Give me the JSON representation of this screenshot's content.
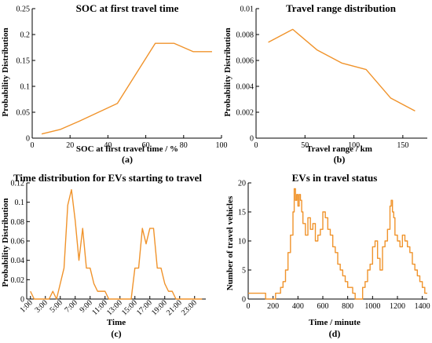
{
  "figure": {
    "colors": {
      "series": "#f0932b",
      "axis": "#000000"
    }
  },
  "chart_data": [
    {
      "type": "line",
      "title": "SOC at first travel time",
      "xlabel": "SOC at first travel time / %",
      "ylabel": "Probability Distribution",
      "tag": "(a)",
      "xlim": [
        0,
        100
      ],
      "ylim": [
        0,
        0.25
      ],
      "xticks": [
        0,
        20,
        40,
        60,
        80,
        100
      ],
      "yticks": [
        0,
        0.05,
        0.1,
        0.15,
        0.2,
        0.25
      ],
      "xtick_labels": [
        "0",
        "20",
        "40",
        "60",
        "80",
        "100"
      ],
      "ytick_labels": [
        "0",
        "0.05",
        "0.1",
        "0.15",
        "0.2",
        "0.25"
      ],
      "grid": false,
      "x": [
        5,
        15,
        25,
        35,
        45,
        55,
        65,
        75,
        85,
        95
      ],
      "y": [
        0.008,
        0.017,
        0.033,
        0.05,
        0.067,
        0.125,
        0.183,
        0.183,
        0.167,
        0.167
      ]
    },
    {
      "type": "line",
      "title": "Travel range distribution",
      "xlabel": "Travel range / km",
      "ylabel": "Probability Distribution",
      "tag": "(b)",
      "xlim": [
        0,
        175
      ],
      "ylim": [
        0,
        0.01
      ],
      "xticks": [
        0,
        50,
        100,
        150
      ],
      "yticks": [
        0,
        0.002,
        0.004,
        0.006,
        0.008,
        0.01
      ],
      "xtick_labels": [
        "0",
        "50",
        "100",
        "150"
      ],
      "ytick_labels": [
        "0",
        "0.002",
        "0.004",
        "0.006",
        "0.008",
        "0.01"
      ],
      "grid": false,
      "x": [
        12.5,
        37.5,
        62.5,
        87.5,
        112.5,
        137.5,
        162.5
      ],
      "y": [
        0.0074,
        0.0084,
        0.0068,
        0.0058,
        0.0053,
        0.0031,
        0.0021
      ]
    },
    {
      "type": "line",
      "title": "Time distribution for EVs starting to travel",
      "xlabel": "Time",
      "ylabel": "Probability Distribution",
      "tag": "(c)",
      "xlim": [
        0.5,
        24.5
      ],
      "ylim": [
        0,
        0.12
      ],
      "xticks": [
        1,
        3,
        5,
        7,
        9,
        11,
        13,
        15,
        17,
        19,
        21,
        23
      ],
      "yticks": [
        0,
        0.02,
        0.04,
        0.06,
        0.08,
        0.1,
        0.12
      ],
      "xtick_labels": [
        "1:00",
        "3:00",
        "5:00",
        "7:00",
        "9:00",
        "11:00",
        "13:00",
        "15:00",
        "17:00",
        "19:00",
        "21:00",
        "23:00"
      ],
      "ytick_labels": [
        "0",
        "0.02",
        "0.04",
        "0.06",
        "0.08",
        "0.1",
        "0.12"
      ],
      "grid": false,
      "x": [
        1,
        1.5,
        2,
        2.5,
        3,
        3.5,
        4,
        4.5,
        5,
        5.5,
        6,
        6.5,
        7,
        7.5,
        8,
        8.5,
        9,
        9.5,
        10,
        10.5,
        11,
        11.5,
        12,
        12.5,
        13,
        13.5,
        14,
        14.5,
        15,
        15.5,
        16,
        16.5,
        17,
        17.5,
        18,
        18.5,
        19,
        19.5,
        20,
        20.5,
        21,
        21.5,
        22,
        22.5,
        23,
        23.5,
        24
      ],
      "y": [
        0.008,
        0,
        0,
        0,
        0,
        0,
        0.008,
        0,
        0.016,
        0.032,
        0.097,
        0.113,
        0.081,
        0.04,
        0.073,
        0.032,
        0.032,
        0.016,
        0.008,
        0.008,
        0.008,
        0,
        0,
        0,
        0,
        0,
        0,
        0,
        0.032,
        0.032,
        0.073,
        0.057,
        0.073,
        0.073,
        0.032,
        0.032,
        0.016,
        0.008,
        0.008,
        0,
        0,
        0,
        0,
        0,
        0,
        0,
        0
      ]
    },
    {
      "type": "line",
      "title": "EVs in travel status",
      "xlabel": "Time / minute",
      "ylabel": "Number of travel vehicles",
      "tag": "(d)",
      "xlim": [
        0,
        1440
      ],
      "ylim": [
        0,
        20
      ],
      "xticks": [
        0,
        200,
        400,
        600,
        800,
        1000,
        1200,
        1400
      ],
      "yticks": [
        0,
        5,
        10,
        15,
        20
      ],
      "xtick_labels": [
        "0",
        "200",
        "400",
        "600",
        "800",
        "1000",
        "1200",
        "1400"
      ],
      "ytick_labels": [
        "0",
        "5",
        "10",
        "15",
        "20"
      ],
      "grid": false,
      "step": true,
      "x": [
        0,
        20,
        40,
        60,
        80,
        100,
        120,
        140,
        160,
        180,
        200,
        220,
        240,
        260,
        280,
        300,
        320,
        340,
        360,
        370,
        380,
        390,
        400,
        410,
        420,
        430,
        440,
        460,
        480,
        500,
        520,
        540,
        560,
        580,
        600,
        620,
        640,
        660,
        680,
        700,
        720,
        740,
        760,
        780,
        800,
        820,
        840,
        860,
        880,
        900,
        920,
        940,
        960,
        980,
        1000,
        1020,
        1040,
        1060,
        1080,
        1100,
        1120,
        1140,
        1150,
        1160,
        1170,
        1180,
        1200,
        1220,
        1240,
        1260,
        1280,
        1300,
        1320,
        1340,
        1360,
        1380,
        1400,
        1420,
        1440
      ],
      "y": [
        1,
        1,
        1,
        1,
        1,
        1,
        1,
        0,
        0,
        0,
        0,
        1,
        1,
        2,
        3,
        5,
        8,
        11,
        15,
        19,
        17,
        18,
        16,
        18,
        17,
        15,
        13,
        11,
        14,
        12,
        13,
        10,
        11,
        12,
        15,
        14,
        12,
        11,
        9,
        8,
        6,
        5,
        4,
        3,
        2,
        2,
        1,
        0,
        0,
        0,
        2,
        3,
        5,
        6,
        9,
        10,
        7,
        5,
        9,
        10,
        12,
        16,
        17,
        15,
        14,
        11,
        10,
        9,
        11,
        10,
        9,
        8,
        6,
        5,
        4,
        3,
        2,
        1,
        1
      ]
    }
  ]
}
